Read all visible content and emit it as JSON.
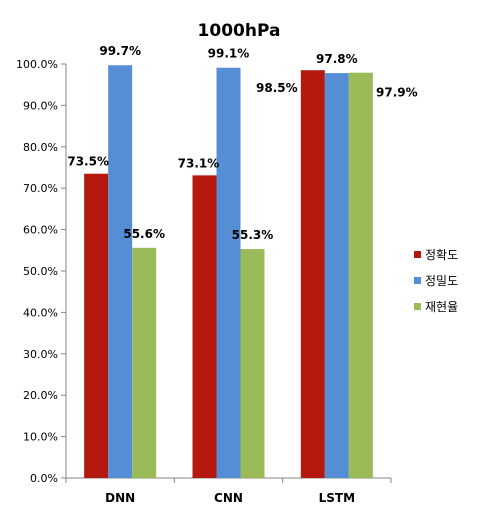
{
  "chart_data": {
    "type": "bar",
    "title": "1000hPa",
    "categories": [
      "DNN",
      "CNN",
      "LSTM"
    ],
    "series": [
      {
        "name": "정확도",
        "color": "#b5180f",
        "values": [
          73.5,
          73.1,
          98.5
        ],
        "labels": [
          "73.5%",
          "73.1%",
          "98.5%"
        ]
      },
      {
        "name": "정밀도",
        "color": "#558ed5",
        "values": [
          99.7,
          99.1,
          97.8
        ],
        "labels": [
          "99.7%",
          "99.1%",
          "97.8%"
        ]
      },
      {
        "name": "재현율",
        "color": "#9bbb59",
        "values": [
          55.6,
          55.3,
          97.9
        ],
        "labels": [
          "55.6%",
          "55.3%",
          "97.9%"
        ]
      }
    ],
    "ylim": [
      0,
      100
    ],
    "yticks": [
      "0.0%",
      "10.0%",
      "20.0%",
      "30.0%",
      "40.0%",
      "50.0%",
      "60.0%",
      "70.0%",
      "80.0%",
      "90.0%",
      "100.0%"
    ],
    "legend_position": "right",
    "grid": false
  }
}
